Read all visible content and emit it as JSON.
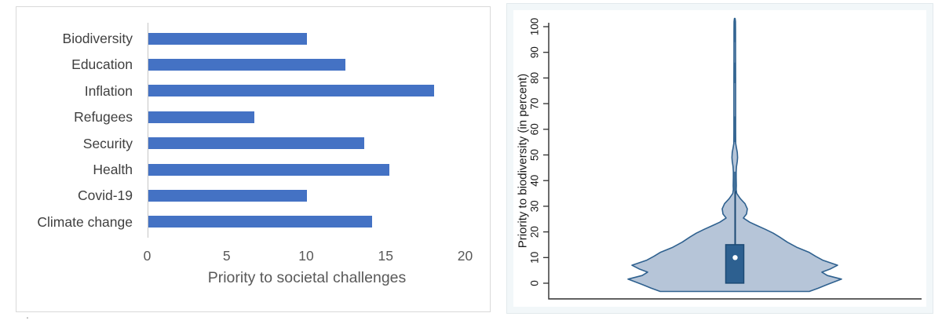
{
  "page": {
    "background": "#ffffff",
    "stray_mark": "."
  },
  "chart_data": [
    {
      "type": "bar",
      "orientation": "horizontal",
      "title": "",
      "xlabel": "Priority to societal challenges",
      "ylabel": "",
      "categories": [
        "Biodiversity",
        "Education",
        "Inflation",
        "Refugees",
        "Security",
        "Health",
        "Covid-19",
        "Climate change"
      ],
      "values": [
        10,
        12.4,
        18,
        6.7,
        13.6,
        15.2,
        10,
        14.1
      ],
      "xticks": [
        0,
        5,
        10,
        15,
        20
      ],
      "xlim": [
        0,
        20
      ],
      "grid": false,
      "legend": "none",
      "bar_color": "#4472C4",
      "axis_line_color": "#c6c6c6",
      "tick_label_color": "#595959",
      "category_label_color": "#3f3f3f"
    },
    {
      "type": "violin",
      "title": "",
      "xlabel": "",
      "ylabel": "Priority to biodiversity (in percent)",
      "yticks": [
        0,
        10,
        20,
        30,
        40,
        50,
        60,
        70,
        80,
        90,
        100
      ],
      "ylim": [
        -7,
        104
      ],
      "grid": false,
      "box": {
        "q1": 0,
        "median": 10,
        "q3": 15,
        "whisker_high": 36
      },
      "violin_extent": {
        "min": -3.2,
        "max": 103
      },
      "fill_color": "#b6c5d8",
      "outline_color": "#2f618f",
      "box_fill_color": "#2d6090",
      "box_border_color": "#1d4a74",
      "median_dot_color": "#ffffff",
      "axis_color": "#2e2e2e",
      "tick_label_color": "#1a1a1a",
      "density_profile": [
        [
          -3.2,
          95
        ],
        [
          -2,
          106
        ],
        [
          -0.5,
          118
        ],
        [
          1.6,
          136
        ],
        [
          3,
          118
        ],
        [
          4.3,
          111
        ],
        [
          5.6,
          122
        ],
        [
          7,
          131
        ],
        [
          9,
          112
        ],
        [
          10.5,
          103
        ],
        [
          12,
          95
        ],
        [
          14,
          79
        ],
        [
          16,
          67
        ],
        [
          18,
          57
        ],
        [
          19.5,
          49
        ],
        [
          21,
          39
        ],
        [
          22.5,
          28
        ],
        [
          23.8,
          19
        ],
        [
          25.4,
          11
        ],
        [
          27,
          15
        ],
        [
          29,
          16
        ],
        [
          31,
          13
        ],
        [
          33,
          7
        ],
        [
          35,
          2.5
        ],
        [
          36.5,
          1.8
        ],
        [
          38,
          2
        ],
        [
          41,
          1.8
        ],
        [
          43.5,
          1.8
        ],
        [
          45.5,
          2.2
        ],
        [
          47.5,
          3.2
        ],
        [
          49,
          3.6
        ],
        [
          51,
          3.2
        ],
        [
          53,
          2
        ],
        [
          54.5,
          1.2
        ],
        [
          60,
          1.1
        ],
        [
          70,
          1.1
        ],
        [
          80,
          1.1
        ],
        [
          90,
          1
        ],
        [
          98,
          1
        ],
        [
          102,
          0.9
        ],
        [
          103.2,
          0.4
        ]
      ],
      "stem_dark_segments": [
        [
          36,
          43.5
        ],
        [
          55,
          65
        ],
        [
          78,
          86
        ],
        [
          94,
          102
        ]
      ]
    }
  ]
}
